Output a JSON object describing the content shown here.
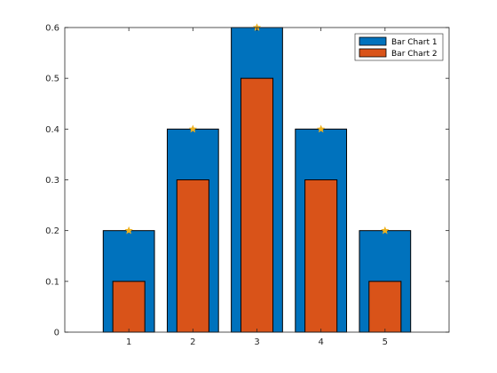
{
  "chart_data": {
    "type": "bar",
    "categories": [
      1,
      2,
      3,
      4,
      5
    ],
    "series": [
      {
        "name": "Bar Chart 1",
        "values": [
          0.2,
          0.4,
          0.6,
          0.4,
          0.2
        ],
        "color": "#0072BD",
        "width": 0.8
      },
      {
        "name": "Bar Chart 2",
        "values": [
          0.1,
          0.3,
          0.5,
          0.3,
          0.1
        ],
        "color": "#D95319",
        "width": 0.5
      }
    ],
    "markers": {
      "values": [
        0.2,
        0.4,
        0.6,
        0.4,
        0.2
      ],
      "color": "#EDB120",
      "shape": "star"
    },
    "xlim": [
      0,
      6
    ],
    "ylim": [
      0,
      0.6
    ],
    "xticks": [
      "1",
      "2",
      "3",
      "4",
      "5"
    ],
    "yticks": [
      "0",
      "0.1",
      "0.2",
      "0.3",
      "0.4",
      "0.5",
      "0.6"
    ],
    "ytick_values": [
      0,
      0.1,
      0.2,
      0.3,
      0.4,
      0.5,
      0.6
    ],
    "legend": {
      "placement": "top-right",
      "entries": [
        "Bar Chart 1",
        "Bar Chart 2"
      ]
    },
    "title": "",
    "xlabel": "",
    "ylabel": "",
    "grid": false
  }
}
